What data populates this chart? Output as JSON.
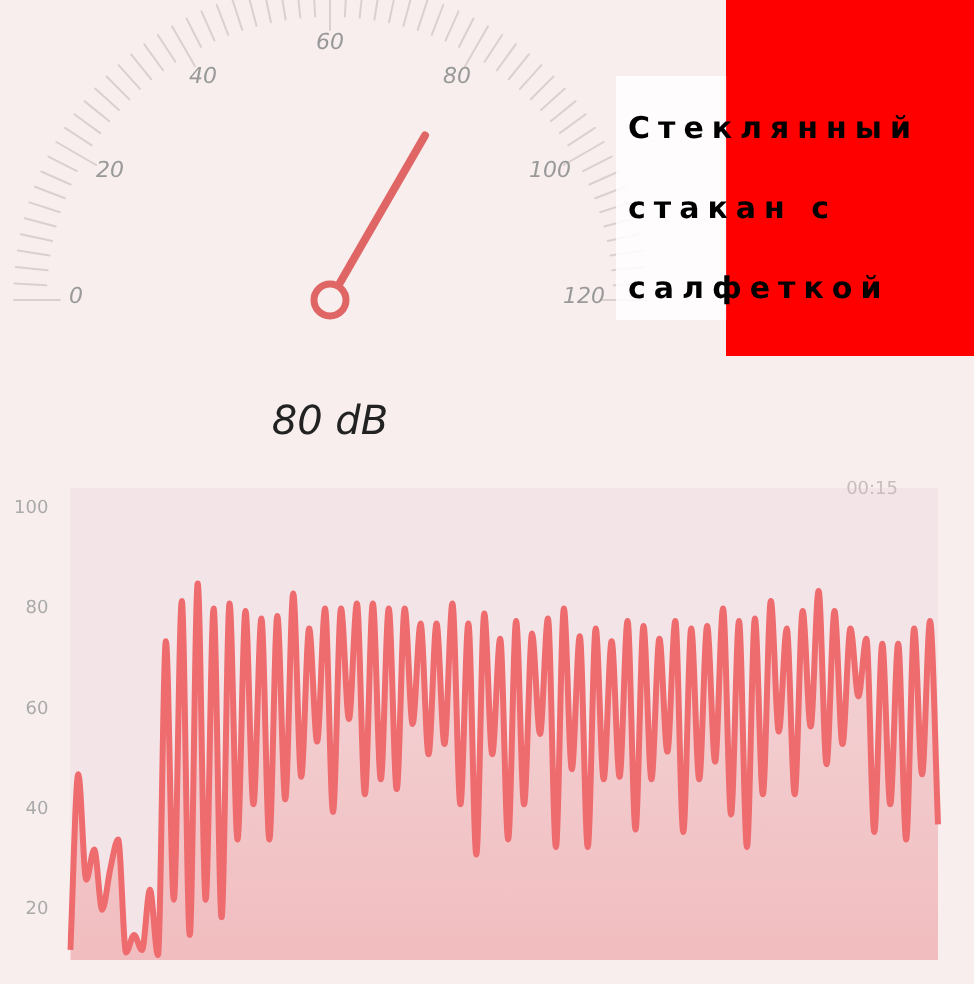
{
  "chart_data": [
    {
      "type": "other",
      "categories": [
        "0",
        "20",
        "40",
        "60",
        "80",
        "100",
        "120"
      ],
      "color": "#e06666",
      "annotations": [
        "80 dB",
        "Стеклянный стакан с салфеткой"
      ]
    },
    {
      "type": "area",
      "color": "#ee6b6e",
      "ylim": [
        10,
        104
      ],
      "yticks": [
        20,
        40,
        60,
        80,
        100
      ],
      "tick_labels": "y",
      "annotations": [
        "00:15"
      ],
      "categories": [
        null,
        null,
        null,
        null,
        null,
        null,
        null,
        null,
        null,
        null,
        null,
        null,
        null,
        null,
        null,
        null,
        null,
        null,
        null,
        null,
        null,
        null,
        null,
        null,
        null,
        null,
        null,
        null,
        null,
        null,
        null,
        null,
        null,
        null,
        null,
        null,
        null,
        null,
        null,
        null,
        null,
        null,
        null,
        null,
        null,
        null,
        null,
        null,
        null,
        null,
        null,
        null,
        null,
        null,
        null,
        null,
        null,
        null,
        null,
        null,
        null,
        null,
        null,
        null,
        null,
        null,
        null,
        null,
        null,
        null,
        null,
        null,
        null,
        null,
        null,
        null,
        null,
        null,
        null,
        null,
        null,
        null,
        null,
        null,
        null,
        null,
        null,
        null,
        null,
        null,
        null,
        null,
        null,
        null,
        null,
        null,
        null,
        null,
        null,
        null,
        null,
        null,
        null,
        null,
        null,
        null,
        null,
        null,
        null,
        null
      ],
      "values": [
        12,
        47,
        26,
        32,
        20,
        28,
        34,
        11.5,
        15,
        12,
        24,
        11,
        73.5,
        22,
        81.5,
        15,
        85,
        22,
        80,
        18.5,
        81,
        34,
        79.5,
        41,
        78,
        34,
        78.5,
        42,
        83,
        46.5,
        76,
        53.5,
        80,
        39.5,
        80,
        58,
        81,
        43,
        81,
        46,
        80,
        44,
        80,
        57,
        77,
        51,
        77,
        53,
        81,
        41,
        77,
        31,
        79,
        51,
        74,
        34,
        77.5,
        41,
        75,
        55,
        78,
        32.5,
        80,
        48,
        74.5,
        32.5,
        76,
        46,
        73.5,
        46.5,
        77.5,
        36,
        76.5,
        46,
        74,
        51.5,
        77.5,
        35.5,
        76,
        46,
        76.5,
        49.5,
        80,
        39,
        77.5,
        32.5,
        78,
        43,
        81.5,
        55.5,
        76,
        43,
        79.5,
        56.5,
        83.5,
        49,
        79.5,
        53,
        76,
        62.5,
        74,
        35.5,
        73,
        41,
        73,
        34,
        76,
        47,
        77.5,
        37
      ]
    }
  ]
}
